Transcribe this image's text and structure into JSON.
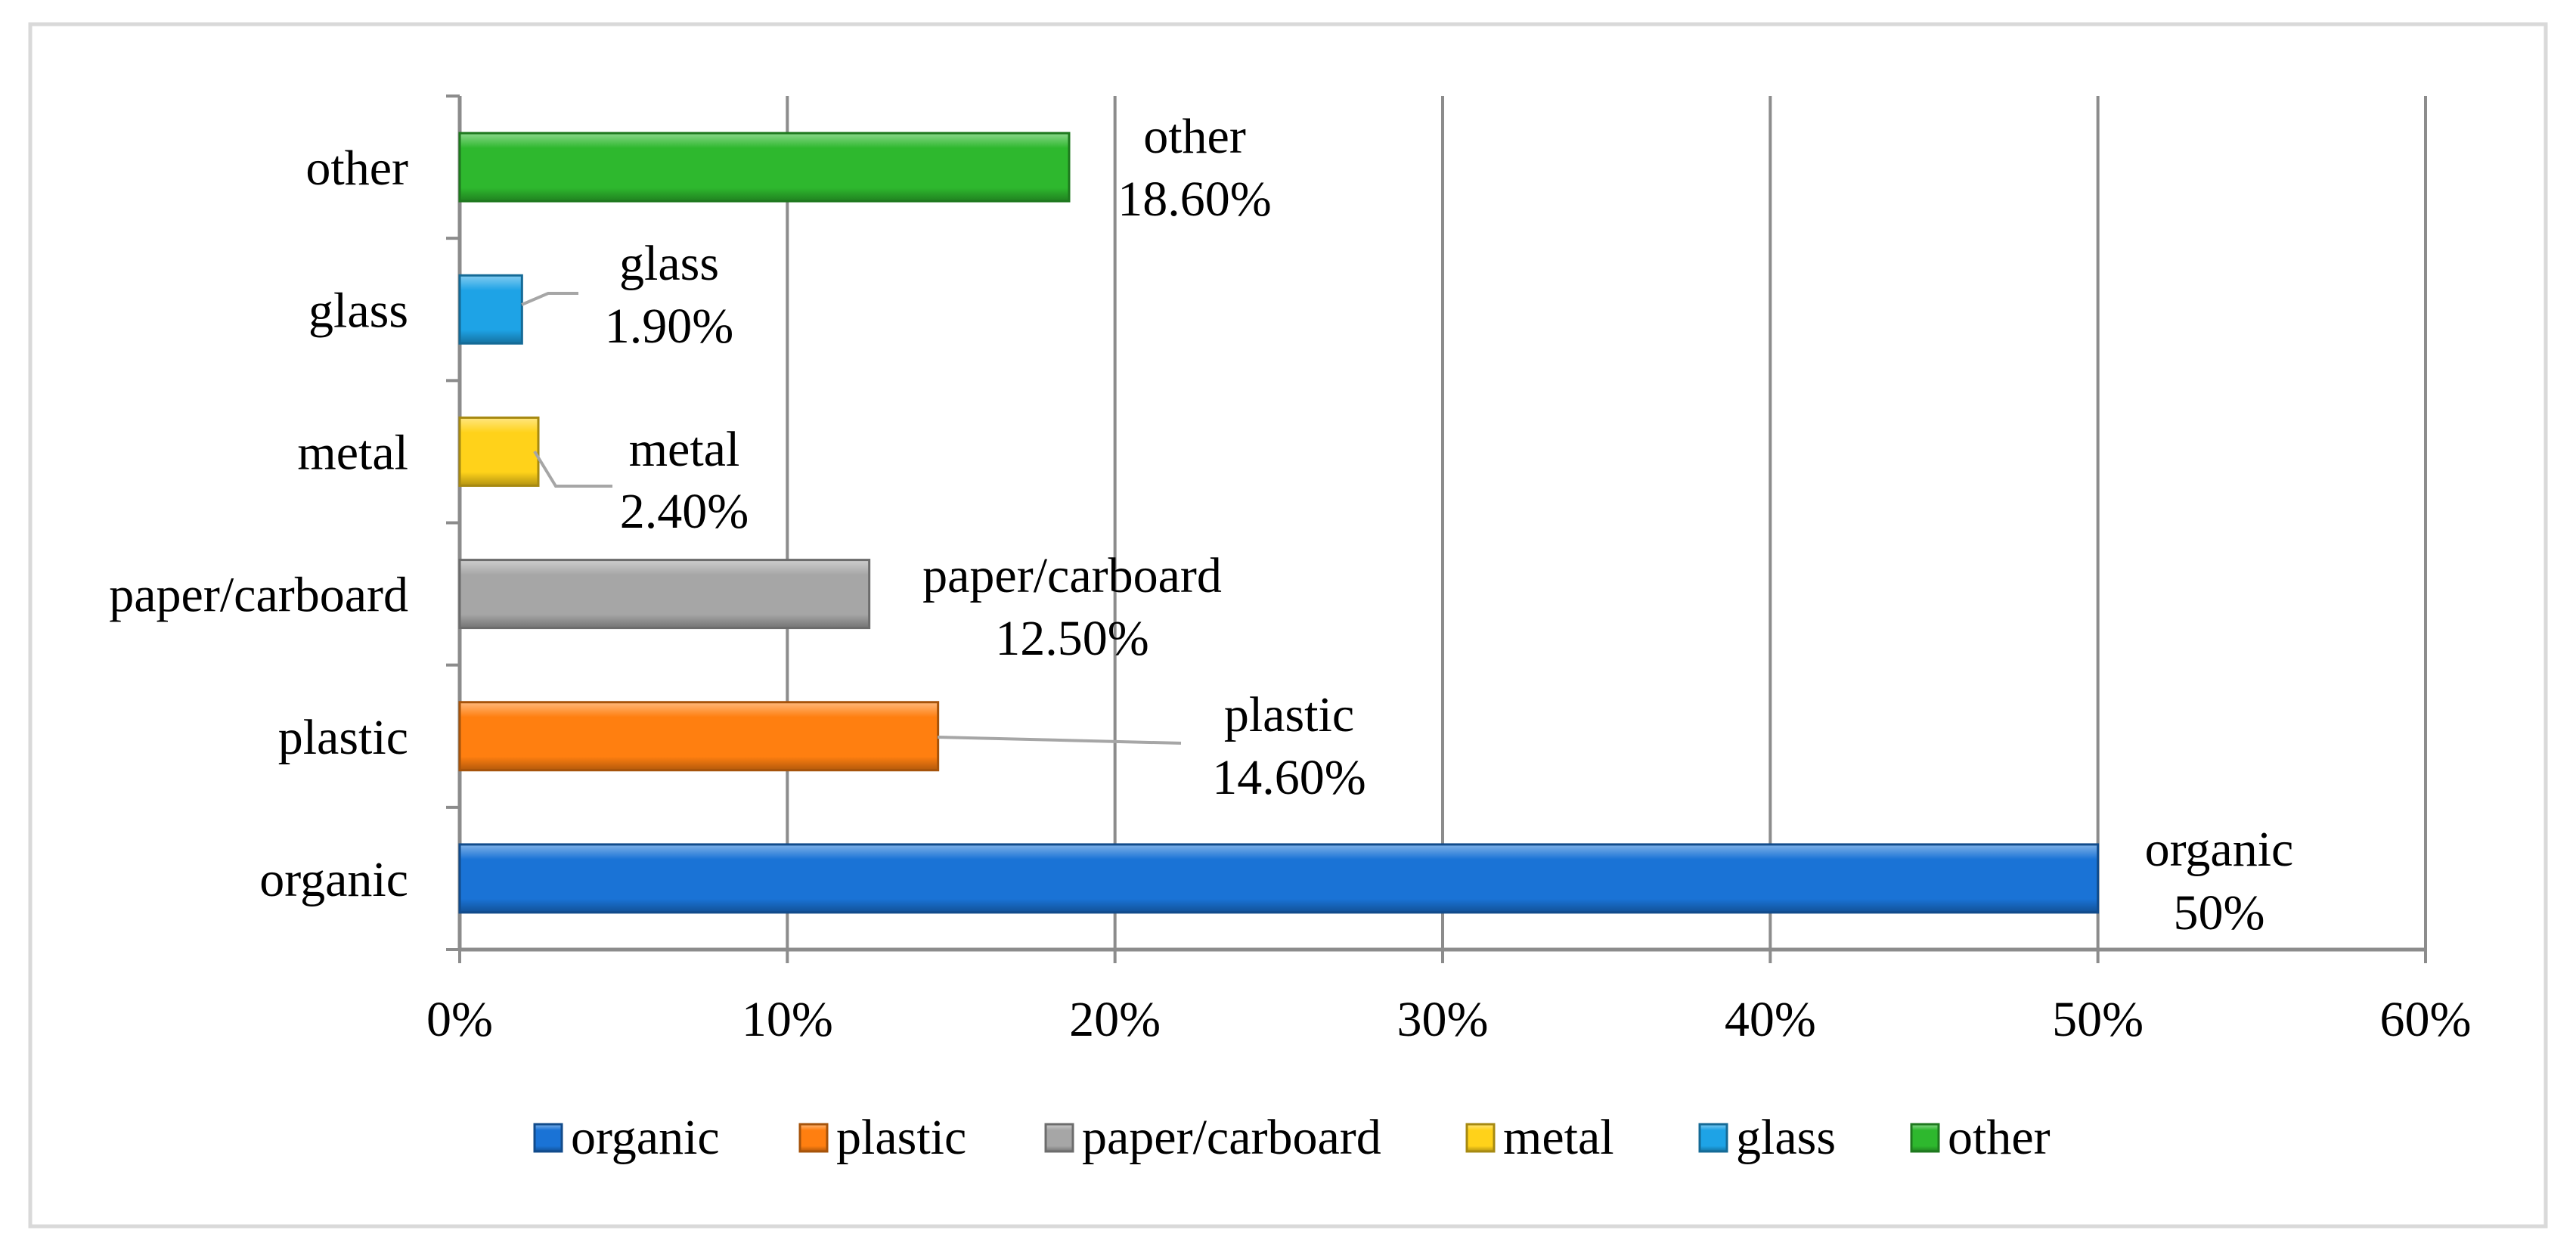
{
  "chart_data": {
    "type": "bar",
    "orientation": "horizontal",
    "categories": [
      "organic",
      "plastic",
      "paper/carboard",
      "metal",
      "glass",
      "other"
    ],
    "values": [
      50,
      14.6,
      12.5,
      2.4,
      1.9,
      18.6
    ],
    "data_labels": [
      {
        "name": "organic",
        "value": "50%"
      },
      {
        "name": "plastic",
        "value": "14.60%"
      },
      {
        "name": "paper/carboard",
        "value": "12.50%"
      },
      {
        "name": "metal",
        "value": "2.40%"
      },
      {
        "name": "glass",
        "value": "1.90%"
      },
      {
        "name": "other",
        "value": "18.60%"
      }
    ],
    "x_ticks": [
      "0%",
      "10%",
      "20%",
      "30%",
      "40%",
      "50%",
      "60%"
    ],
    "xlim": [
      0,
      60
    ],
    "grid": "vertical",
    "legend_position": "bottom",
    "legend": [
      "organic",
      "plastic",
      "paper/carboard",
      "metal",
      "glass",
      "other"
    ],
    "colors": {
      "organic": "#1a73d6",
      "plastic": "#ff7f10",
      "paper/carboard": "#a6a6a6",
      "metal": "#ffd21a",
      "glass": "#1ea3e6",
      "other": "#2eb82e"
    }
  }
}
